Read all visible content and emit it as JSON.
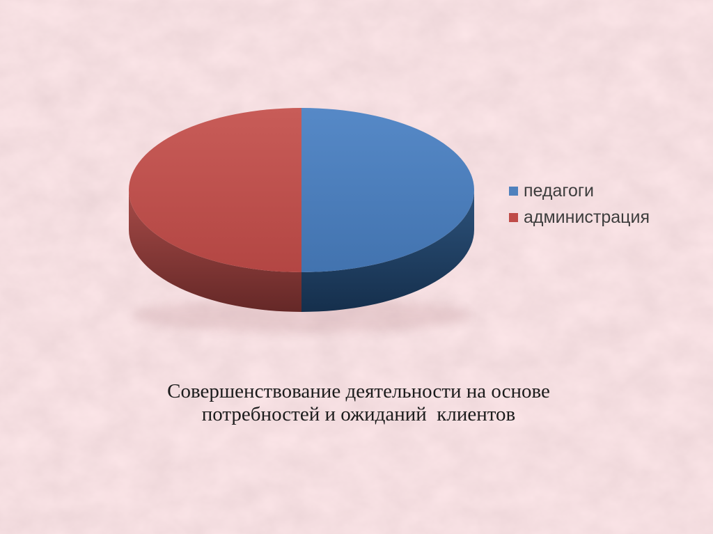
{
  "slide": {
    "background_base_color": "#e7babf",
    "caption": {
      "line1": "Совершенствование деятельности на основе",
      "line2": "потребностей и ожиданий  клиентов"
    }
  },
  "legend": {
    "position": "right",
    "text_color": "#3d3d3d"
  },
  "chart_data": {
    "type": "pie",
    "style": "3d-extruded",
    "title": "Совершенствование деятельности на основе потребностей и ожиданий  клиентов",
    "legend_position": "right",
    "data_labels_visible": false,
    "rotation_start_deg": -90,
    "values_unit": "percent (estimated, no labels shown)",
    "categories": [
      "педагоги",
      "администрация"
    ],
    "values": [
      50,
      50
    ],
    "slices": [
      {
        "label": "педагоги",
        "value": 50,
        "legend_color": "#4f81bd",
        "top_light": "#5689c7",
        "top_dark": "#4273af",
        "side_light": "#2d527b",
        "side_dark": "#152f4c"
      },
      {
        "label": "администрация",
        "value": 50,
        "legend_color": "#bf4b48",
        "top_light": "#c85c58",
        "top_dark": "#b34643",
        "side_light": "#a74b48",
        "side_dark": "#652827"
      }
    ]
  }
}
